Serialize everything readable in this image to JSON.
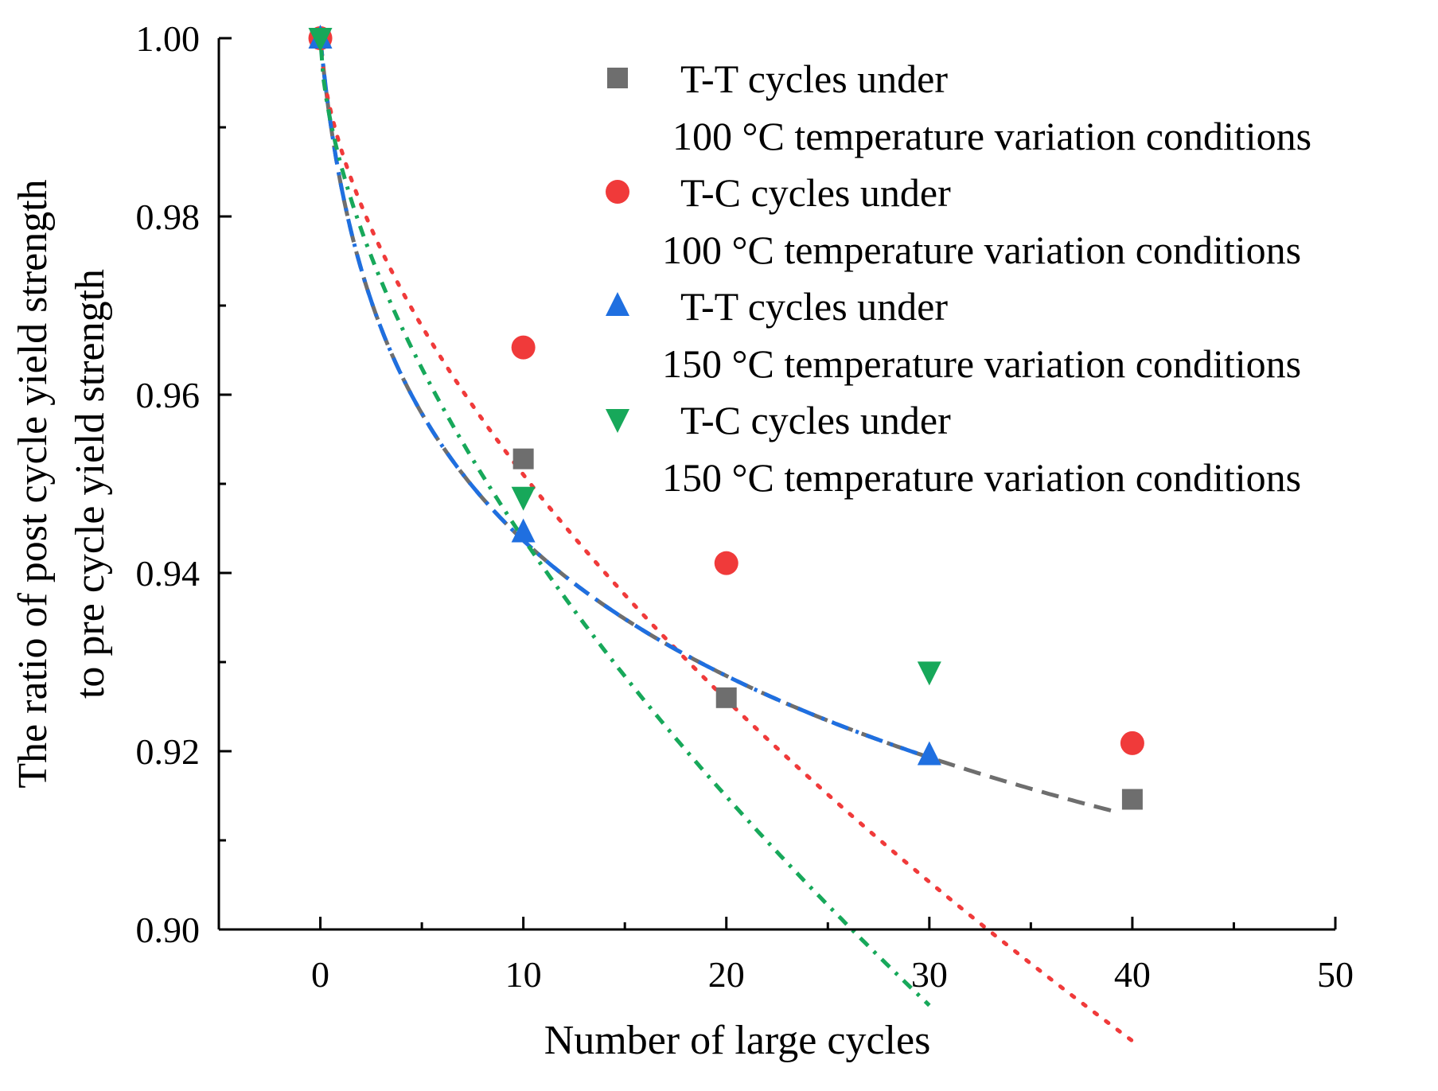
{
  "chart_data": {
    "type": "scatter",
    "title": "",
    "xlabel": "Number of large cycles",
    "ylabel_lines": [
      "The ratio of post cycle yield strength",
      "to pre cycle yield strength"
    ],
    "xlim": [
      -5,
      50
    ],
    "ylim": [
      0.9,
      1.0
    ],
    "xticks": [
      0,
      10,
      20,
      30,
      40,
      50
    ],
    "xtick_labels": [
      "0",
      "10",
      "20",
      "30",
      "40",
      "50"
    ],
    "xminor": [
      5,
      15,
      25,
      35,
      45
    ],
    "yticks": [
      0.9,
      0.92,
      0.94,
      0.96,
      0.98,
      1.0
    ],
    "ytick_labels": [
      "0.90",
      "0.92",
      "0.94",
      "0.96",
      "0.98",
      "1.00"
    ],
    "yminor": [
      0.91,
      0.93,
      0.95,
      0.97,
      0.99
    ],
    "grid": false,
    "legend_position": "top-right",
    "series": [
      {
        "name_line1": "T-T cycles under",
        "name_line2": "100 °C temperature variation conditions",
        "marker": "square",
        "color": "#6e6e6e",
        "fit_style": "dash",
        "x": [
          0,
          10,
          20,
          40
        ],
        "y": [
          1.0,
          0.9528,
          0.926,
          0.9146
        ],
        "fit": {
          "a": 1.0,
          "b": -0.0235,
          "x_end": 39.2
        }
      },
      {
        "name_line1": "T-C cycles under",
        "name_line2": "100 °C temperature variation conditions",
        "marker": "circle",
        "color": "#f03a3a",
        "fit_style": "dot",
        "x": [
          0,
          10,
          20,
          40
        ],
        "y": [
          1.0,
          0.9653,
          0.9411,
          0.9209
        ],
        "fit": {
          "a": 1.0,
          "b": -0.0123,
          "p": 0.6,
          "x_end": 40
        }
      },
      {
        "name_line1": "T-T cycles under",
        "name_line2": "150 °C temperature variation conditions",
        "marker": "triangle-up",
        "color": "#1f6fe0",
        "fit_style": "dashdot",
        "x": [
          0,
          10,
          30
        ],
        "y": [
          1.0,
          0.9446,
          0.9196
        ],
        "fit": {
          "a": 1.0,
          "b": -0.0235,
          "x_end": 30
        }
      },
      {
        "name_line1": "T-C cycles under",
        "name_line2": "150 °C temperature variation conditions",
        "marker": "triangle-down",
        "color": "#17a85a",
        "fit_style": "dashdot-dense",
        "x": [
          0,
          10,
          30
        ],
        "y": [
          1.0,
          0.9485,
          0.9289
        ],
        "fit": {
          "a": 1.0,
          "b": -0.0141,
          "p": 0.6,
          "x_end": 30
        }
      }
    ]
  }
}
